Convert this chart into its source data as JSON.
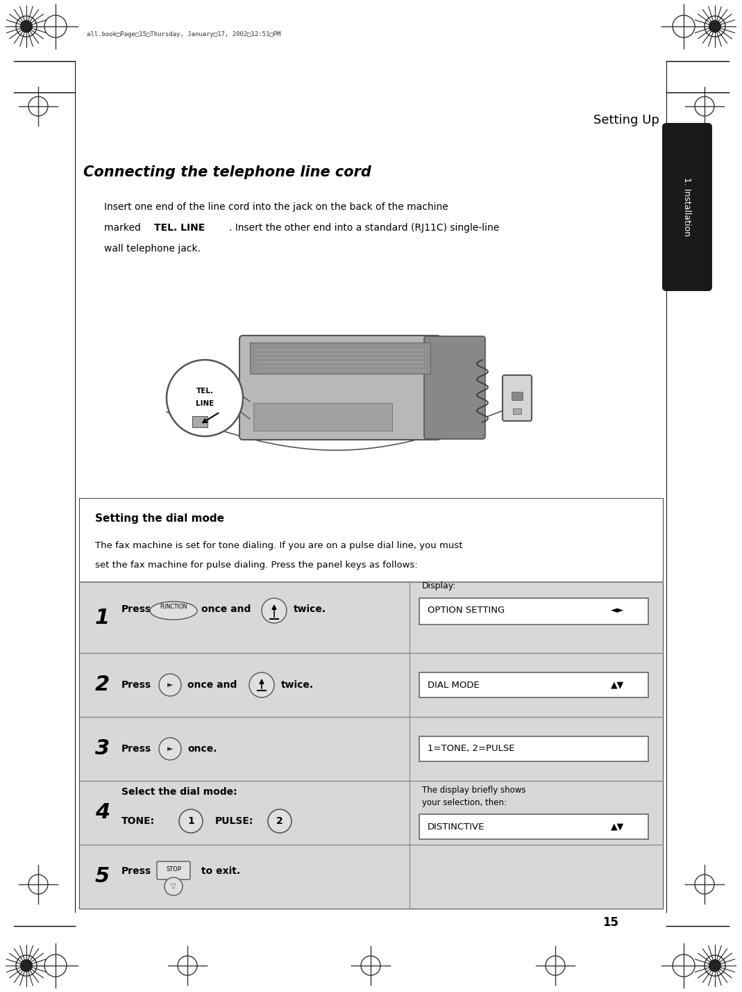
{
  "bg_color": "#ffffff",
  "tab_bg": "#1a1a1a",
  "tab_text": "1. Installation",
  "tab_text_color": "#ffffff",
  "header_text": "Setting Up",
  "page_number": "15",
  "footer_file_text": "all.book  Page 15  Thursday, January 17, 2002  12:51 PM",
  "title_text": "Connecting the telephone line cord",
  "line1": "Insert one end of the line cord into the jack on the back of the machine",
  "line2a": "marked ",
  "line2b": "TEL. LINE",
  "line2c": ". Insert the other end into a standard (RJ11C) single-line",
  "line3": "wall telephone jack.",
  "box_border": "#444444",
  "box_title": "Setting the dial mode",
  "box_intro1": "The fax machine is set for tone dialing. If you are on a pulse dial line, you must",
  "box_intro2": "set the fax machine for pulse dialing. Press the panel keys as follows:",
  "display1_label": "Display:",
  "display1_text": "OPTION SETTING",
  "display2_text": "DIAL MODE",
  "display3_text": "1=TONE, 2=PULSE",
  "display4_label1": "The display briefly shows",
  "display4_label2": "your selection, then:",
  "display4_text": "DISTINCTIVE",
  "display_bg": "#ffffff",
  "display_border": "#666666",
  "step_bg": "#d8d8d8",
  "header_bg": "#ffffff",
  "divider_color": "#888888"
}
